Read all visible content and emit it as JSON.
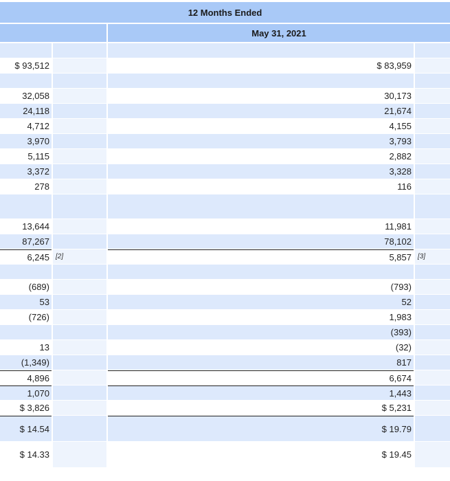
{
  "header": {
    "period": "12 Months Ended",
    "date": "May 31, 2021"
  },
  "table": {
    "rows": [
      [
        null,
        null,
        null,
        null
      ],
      [
        "$ 93,512",
        null,
        "$ 83,959",
        null
      ],
      [
        null,
        null,
        null,
        null
      ],
      [
        "32,058",
        null,
        "30,173",
        null
      ],
      [
        "24,118",
        null,
        "21,674",
        null
      ],
      [
        "4,712",
        null,
        "4,155",
        null
      ],
      [
        "3,970",
        null,
        "3,793",
        null
      ],
      [
        "5,115",
        null,
        "2,882",
        null
      ],
      [
        "3,372",
        null,
        "3,328",
        null
      ],
      [
        "278",
        null,
        "116",
        null
      ],
      [
        null,
        null,
        null,
        null
      ],
      [
        "13,644",
        null,
        "11,981",
        null
      ],
      [
        "87,267",
        null,
        "78,102",
        null
      ],
      [
        "6,245",
        "[2]",
        "5,857",
        "[3]"
      ],
      [
        null,
        null,
        null,
        null
      ],
      [
        "(689)",
        null,
        "(793)",
        null
      ],
      [
        "53",
        null,
        "52",
        null
      ],
      [
        "(726)",
        null,
        "1,983",
        null
      ],
      [
        null,
        null,
        "(393)",
        null
      ],
      [
        "13",
        null,
        "(32)",
        null
      ],
      [
        "(1,349)",
        null,
        "817",
        null
      ],
      [
        "4,896",
        null,
        "6,674",
        null
      ],
      [
        "1,070",
        null,
        "1,443",
        null
      ],
      [
        "$ 3,826",
        null,
        "$ 5,231",
        null
      ],
      [
        "$ 14.54",
        null,
        "$ 19.79",
        null
      ],
      [
        "$ 14.33",
        null,
        "$ 19.45",
        null
      ]
    ]
  }
}
